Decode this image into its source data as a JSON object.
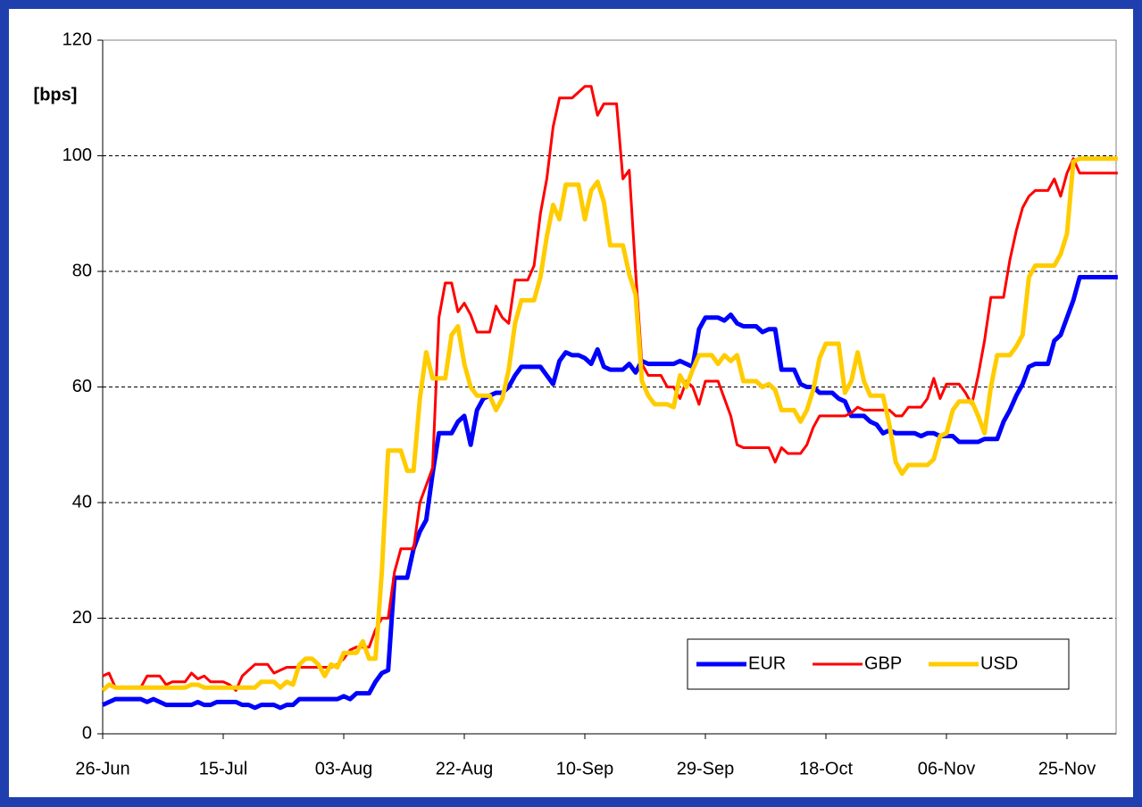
{
  "chart_data": {
    "type": "line",
    "ylabel": "[bps]",
    "categories": [
      "26-Jun",
      null,
      null,
      null,
      null,
      null,
      null,
      null,
      null,
      null,
      null,
      null,
      null,
      null,
      null,
      null,
      null,
      null,
      null,
      "15-Jul",
      null,
      null,
      null,
      null,
      null,
      null,
      null,
      null,
      null,
      null,
      null,
      null,
      null,
      null,
      null,
      null,
      null,
      null,
      "03-Aug",
      null,
      null,
      null,
      null,
      null,
      null,
      null,
      null,
      null,
      null,
      null,
      null,
      null,
      null,
      null,
      null,
      null,
      null,
      "22-Aug",
      null,
      null,
      null,
      null,
      null,
      null,
      null,
      null,
      null,
      null,
      null,
      null,
      null,
      null,
      null,
      null,
      null,
      null,
      "10-Sep",
      null,
      null,
      null,
      null,
      null,
      null,
      null,
      null,
      null,
      null,
      null,
      null,
      null,
      null,
      null,
      null,
      null,
      null,
      "29-Sep",
      null,
      null,
      null,
      null,
      null,
      null,
      null,
      null,
      null,
      null,
      null,
      null,
      null,
      null,
      null,
      null,
      null,
      null,
      "18-Oct",
      null,
      null,
      null,
      null,
      null,
      null,
      null,
      null,
      null,
      null,
      null,
      null,
      null,
      null,
      null,
      null,
      null,
      null,
      "06-Nov",
      null,
      null,
      null,
      null,
      null,
      null,
      null,
      null,
      null,
      null,
      null,
      null,
      null,
      null,
      null,
      null,
      null,
      null,
      "25-Nov",
      null,
      null,
      null,
      null,
      null,
      null,
      null,
      null
    ],
    "series": [
      {
        "name": "EUR",
        "color": "#0000ff",
        "width": 5,
        "values": [
          5,
          5.5,
          6,
          6,
          6,
          6,
          6,
          5.5,
          6,
          5.5,
          5,
          5,
          5,
          5,
          5,
          5.5,
          5,
          5,
          5.5,
          5.5,
          5.5,
          5.5,
          5,
          5,
          4.5,
          5,
          5,
          5,
          4.5,
          5,
          5,
          6,
          6,
          6,
          6,
          6,
          6,
          6,
          6.5,
          6,
          7,
          7,
          7,
          9,
          10.5,
          11,
          27,
          27,
          27,
          32,
          35,
          37,
          45,
          52,
          52,
          52,
          54,
          55,
          50,
          56,
          58,
          58.5,
          59,
          59,
          60,
          62,
          63.5,
          63.5,
          63.5,
          63.5,
          62,
          60.5,
          64.5,
          66,
          65.5,
          65.5,
          65,
          64,
          66.5,
          63.5,
          63,
          63,
          63,
          64,
          62.5,
          64.5,
          64,
          64,
          64,
          64,
          64,
          64.5,
          64,
          63.5,
          70,
          72,
          72,
          72,
          71.5,
          72.5,
          71,
          70.5,
          70.5,
          70.5,
          69.5,
          70,
          70,
          63,
          63,
          63,
          60.5,
          60,
          60,
          59,
          59,
          59,
          58,
          57.5,
          55,
          55,
          55,
          54,
          53.5,
          52,
          52.5,
          52,
          52,
          52,
          52,
          51.5,
          52,
          52,
          51.5,
          51.5,
          51.5,
          50.5,
          50.5,
          50.5,
          50.5,
          51,
          51,
          51,
          54,
          56,
          58.5,
          60.5,
          63.5,
          64,
          64,
          64,
          68,
          69,
          72,
          75,
          79,
          79,
          79,
          79,
          79,
          79,
          79
        ]
      },
      {
        "name": "GBP",
        "color": "#ff0000",
        "width": 3,
        "values": [
          10,
          10.5,
          8,
          8,
          8,
          8,
          8,
          10,
          10,
          10,
          8.5,
          9,
          9,
          9,
          10.5,
          9.5,
          10,
          9,
          9,
          9,
          8.5,
          7.5,
          10,
          11,
          12,
          12,
          12,
          10.5,
          11,
          11.5,
          11.5,
          11.5,
          11.5,
          11.5,
          11.5,
          11.5,
          11.5,
          12,
          13,
          14.5,
          15,
          15,
          15,
          18,
          20,
          20,
          28,
          32,
          32,
          32,
          40,
          43,
          46,
          72,
          78,
          78,
          73,
          74.5,
          72.5,
          69.5,
          69.5,
          69.5,
          74,
          72,
          71,
          78.5,
          78.5,
          78.5,
          81,
          90,
          96,
          105,
          110,
          110,
          110,
          111,
          112,
          112,
          107,
          109,
          109,
          109,
          96,
          97.5,
          80,
          64,
          62,
          62,
          62,
          60,
          60,
          58,
          61,
          60,
          57,
          61,
          61,
          61,
          58,
          55,
          50,
          49.5,
          49.5,
          49.5,
          49.5,
          49.5,
          47,
          49.5,
          48.5,
          48.5,
          48.5,
          50,
          53,
          55,
          55,
          55,
          55,
          55,
          55.5,
          56.5,
          56,
          56,
          56,
          56,
          56,
          55,
          55,
          56.5,
          56.5,
          56.5,
          58,
          61.5,
          58,
          60.5,
          60.5,
          60.5,
          59,
          57,
          62,
          68,
          75.5,
          75.5,
          75.5,
          82,
          87,
          91,
          93,
          94,
          94,
          94,
          96,
          93,
          97,
          99.5,
          97,
          97,
          97,
          97,
          97,
          97,
          97
        ]
      },
      {
        "name": "USD",
        "color": "#ffcc00",
        "width": 5,
        "values": [
          7.5,
          8.5,
          8,
          8,
          8,
          8,
          8,
          8,
          8,
          8,
          8,
          8,
          8,
          8,
          8.5,
          8.5,
          8,
          8,
          8,
          8,
          8,
          8,
          8,
          8,
          8,
          9,
          9,
          9,
          8,
          9,
          8.5,
          12,
          13,
          13,
          12,
          10,
          12,
          11.5,
          14,
          14,
          14,
          16,
          13,
          13,
          28,
          49,
          49,
          49,
          45.5,
          45.5,
          58,
          66,
          61.5,
          61.5,
          61.5,
          69,
          70.5,
          64,
          60,
          58.5,
          58.5,
          58.5,
          56,
          58,
          63,
          71,
          75,
          75,
          75,
          79,
          86,
          91.5,
          89,
          95,
          95,
          95,
          89,
          94,
          95.5,
          92,
          84.5,
          84.5,
          84.5,
          79.5,
          76,
          61,
          58.5,
          57,
          57,
          57,
          56.5,
          62,
          60,
          63,
          65.5,
          65.5,
          65.5,
          64,
          65.5,
          64.5,
          65.5,
          61,
          61,
          61,
          60,
          60.5,
          59.5,
          56,
          56,
          56,
          54,
          56,
          59.5,
          65,
          67.5,
          67.5,
          67.5,
          59,
          61,
          66,
          61,
          58.5,
          58.5,
          58.5,
          53.5,
          47,
          45,
          46.5,
          46.5,
          46.5,
          46.5,
          47.5,
          51.5,
          52,
          56,
          57.5,
          57.5,
          57.5,
          55,
          52,
          60,
          65.5,
          65.5,
          65.5,
          67,
          69,
          79,
          81,
          81,
          81,
          81,
          83,
          86.5,
          99,
          99.5,
          99.5,
          99.5,
          99.5,
          99.5,
          99.5,
          99.5
        ]
      }
    ],
    "ylim": [
      0,
      120
    ],
    "yticks": [
      0,
      20,
      40,
      60,
      80,
      100,
      120
    ],
    "grid": true,
    "legend": "lower right"
  }
}
